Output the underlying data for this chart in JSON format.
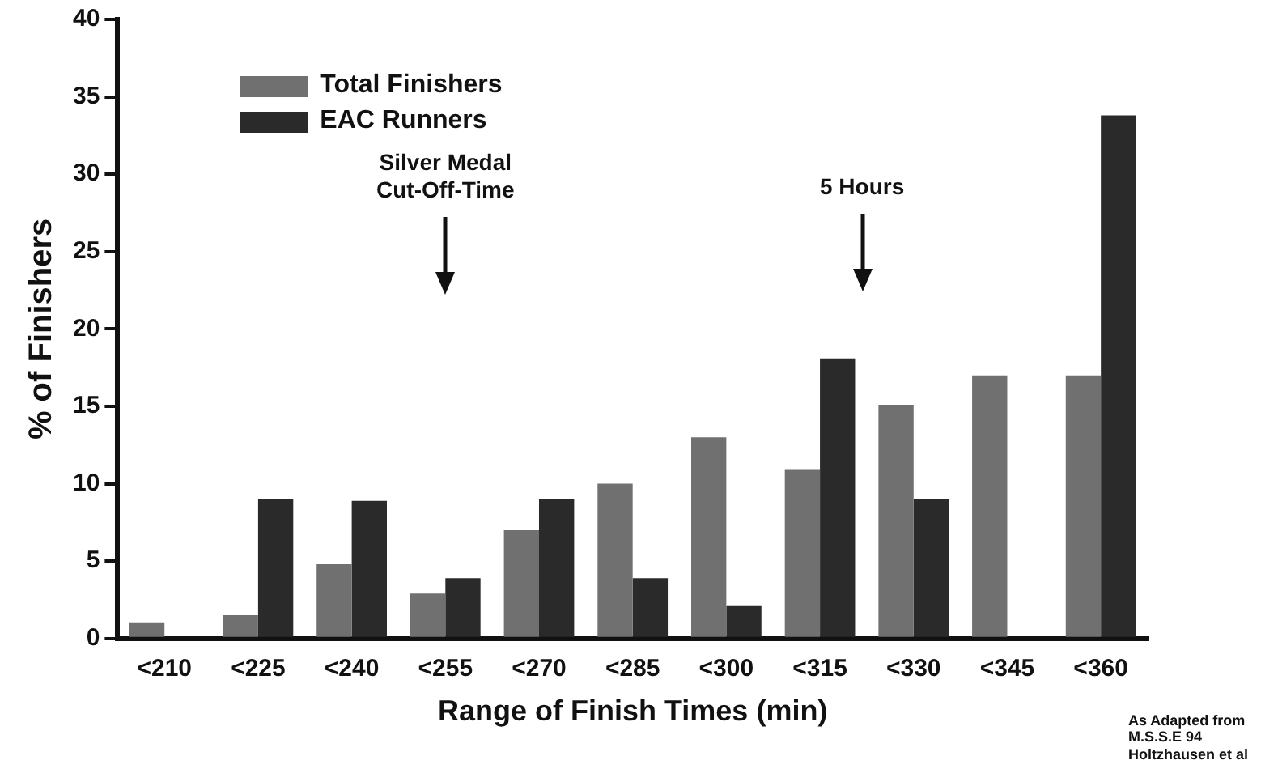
{
  "chart_data": {
    "type": "bar",
    "xlabel": "Range of Finish Times (min)",
    "ylabel": "% of Finishers",
    "categories": [
      "<210",
      "<225",
      "<240",
      "<255",
      "<270",
      "<285",
      "<300",
      "<315",
      "<330",
      "<345",
      "<360"
    ],
    "series": [
      {
        "name": "Total Finishers",
        "color": "#707070",
        "values": [
          1,
          1.5,
          4.8,
          2.9,
          7,
          10,
          13,
          10.9,
          15.1,
          17,
          17
        ]
      },
      {
        "name": "EAC Runners",
        "color": "#2a2a2a",
        "values": [
          0,
          9,
          8.9,
          3.9,
          9,
          3.9,
          2.1,
          18.1,
          9,
          0,
          33.8
        ]
      }
    ],
    "ylim": [
      0,
      40
    ],
    "yticks": [
      0,
      5,
      10,
      15,
      20,
      25,
      30,
      35,
      40
    ],
    "grid": false,
    "legend": "top left",
    "annotations": [
      "Silver Medal\nCut-Off-Time",
      "5 Hours",
      "As Adapted from\nM.S.S.E 94\nHoltzhausen et al"
    ]
  }
}
